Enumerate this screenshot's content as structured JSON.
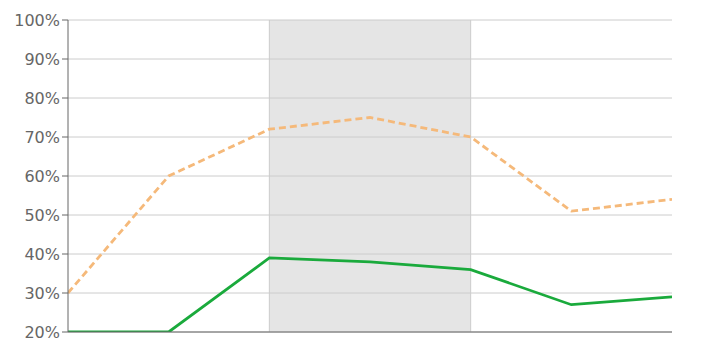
{
  "chart_data": {
    "type": "line",
    "x": [
      0,
      1,
      2,
      3,
      4,
      5,
      6
    ],
    "series": [
      {
        "color": "#f5b97a",
        "line_style": "dashed",
        "values": [
          30,
          60,
          72,
          75,
          70,
          51,
          54
        ]
      },
      {
        "color": "#1aaa3c",
        "line_style": "solid",
        "values": [
          20,
          20,
          39,
          38,
          36,
          27,
          29
        ]
      }
    ],
    "xlim": [
      0,
      6
    ],
    "xticks": [],
    "ylim": [
      20,
      100
    ],
    "yticks": [
      {
        "value": 20,
        "label": "20%"
      },
      {
        "value": 30,
        "label": "30%"
      },
      {
        "value": 40,
        "label": "40%"
      },
      {
        "value": 50,
        "label": "50%"
      },
      {
        "value": 60,
        "label": "60%"
      },
      {
        "value": 70,
        "label": "70%"
      },
      {
        "value": 80,
        "label": "80%"
      },
      {
        "value": 90,
        "label": "90%"
      },
      {
        "value": 100,
        "label": "100%"
      }
    ],
    "shaded_x_range": [
      2,
      4
    ],
    "grid": true,
    "tick_labels": "y"
  }
}
